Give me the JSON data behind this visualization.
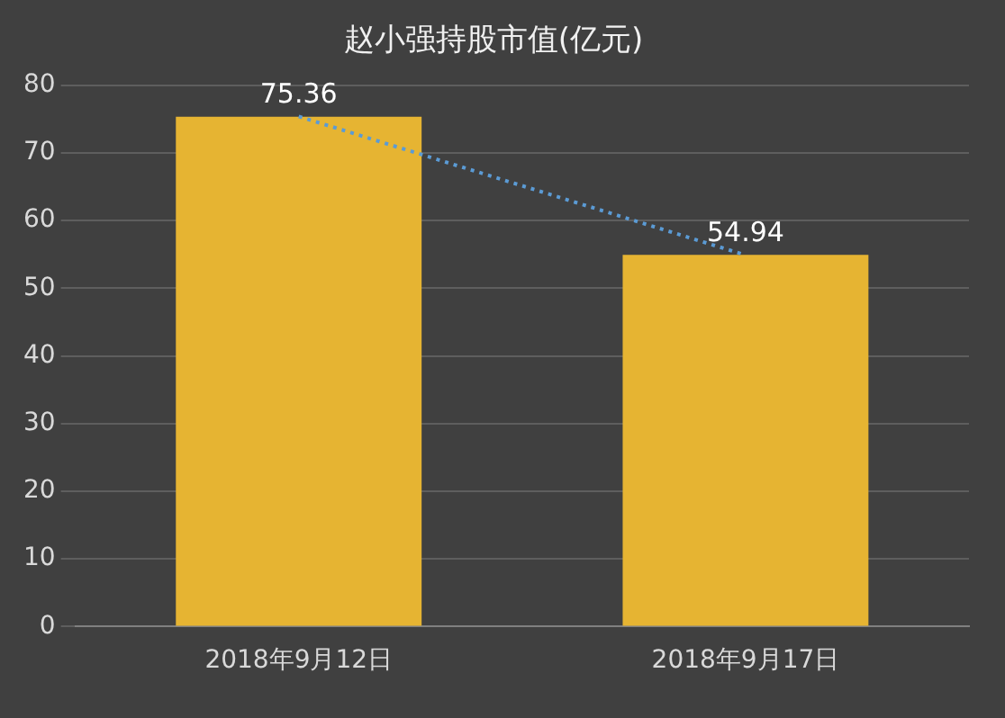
{
  "chart_data": {
    "type": "bar",
    "title": "赵小强持股市值(亿元)",
    "categories": [
      "2018年9月12日",
      "2018年9月17日"
    ],
    "series": [
      {
        "color": "#e6b432",
        "values": [
          75.36,
          54.94
        ],
        "value_labels": [
          "75.36",
          "54.94"
        ]
      },
      {
        "type": "line",
        "color": "#5b9bd5",
        "values": [
          75.4,
          54.9
        ],
        "line_style": "dotted",
        "marker": "none"
      }
    ],
    "ylim": [
      0,
      80
    ],
    "yticks": [
      0,
      10,
      20,
      30,
      40,
      50,
      60,
      70,
      80
    ],
    "grid": "y",
    "legend": false
  }
}
